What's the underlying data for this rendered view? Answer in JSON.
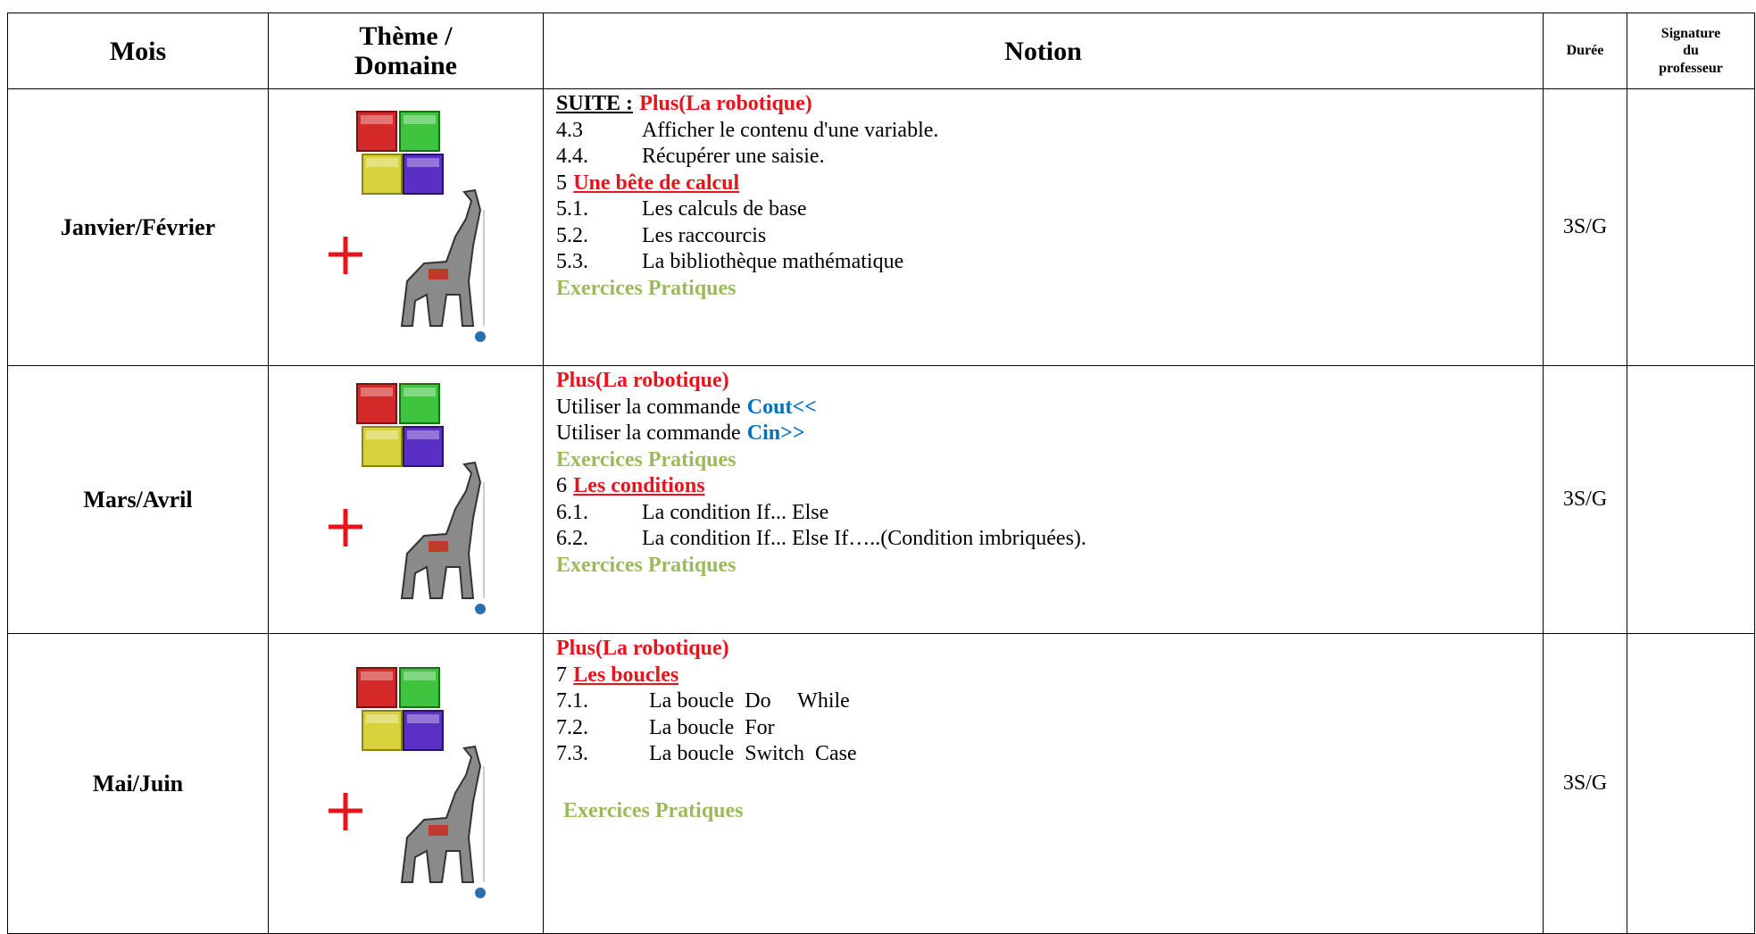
{
  "table": {
    "header": {
      "mois": "Mois",
      "theme": [
        "Thème /",
        "Domaine"
      ],
      "notion": "Notion",
      "duree": "Durée",
      "signature": [
        "Signature",
        "du",
        "professeur"
      ]
    },
    "rows": [
      {
        "mois": "Janvier/Février",
        "duree": "3S/G",
        "notion": [
          {
            "parts": [
              {
                "text": "SUITE :",
                "style": "black-bold-underline"
              },
              {
                "text": "Plus(La robotique)",
                "style": "red-bold"
              }
            ]
          },
          {
            "num": "4.3",
            "parts": [
              {
                "text": "Afficher le contenu d'une variable.",
                "style": "plain"
              }
            ]
          },
          {
            "num": "4.4.",
            "parts": [
              {
                "text": "Récupérer une saisie.",
                "style": "plain"
              }
            ]
          },
          {
            "parts": [
              {
                "text": "5",
                "style": "plain"
              },
              {
                "text": "Une bête de calcul",
                "style": "red-bold-underline"
              }
            ]
          },
          {
            "num": "5.1.",
            "parts": [
              {
                "text": "Les calculs de base",
                "style": "plain"
              }
            ]
          },
          {
            "num": "5.2.",
            "parts": [
              {
                "text": "Les raccourcis",
                "style": "plain"
              }
            ]
          },
          {
            "num": "5.3.",
            "parts": [
              {
                "text": "La bibliothèque mathématique",
                "style": "plain"
              }
            ]
          },
          {
            "parts": [
              {
                "text": "Exercices Pratiques",
                "style": "green-bold"
              }
            ]
          }
        ]
      },
      {
        "mois": "Mars/Avril",
        "duree": "3S/G",
        "notion": [
          {
            "parts": [
              {
                "text": "Plus(La robotique)",
                "style": "red-bold"
              }
            ]
          },
          {
            "parts": [
              {
                "text": "Utiliser la commande",
                "style": "plain"
              },
              {
                "text": "Cout<<",
                "style": "blue-bold"
              }
            ]
          },
          {
            "parts": [
              {
                "text": "Utiliser la commande",
                "style": "plain"
              },
              {
                "text": "Cin>>",
                "style": "blue-bold"
              }
            ]
          },
          {
            "parts": [
              {
                "text": "Exercices Pratiques",
                "style": "green-bold"
              }
            ]
          },
          {
            "parts": [
              {
                "text": "6",
                "style": "plain"
              },
              {
                "text": "Les conditions",
                "style": "red-bold-underline"
              }
            ]
          },
          {
            "num": "6.1.",
            "parts": [
              {
                "text": "La condition If... Else",
                "style": "plain"
              }
            ]
          },
          {
            "num": "6.2.",
            "parts": [
              {
                "text": "La condition If... Else If…..(Condition imbriquées).",
                "style": "plain"
              }
            ]
          },
          {
            "parts": [
              {
                "text": "Exercices Pratiques",
                "style": "green-bold"
              }
            ]
          }
        ]
      },
      {
        "mois": "Mai/Juin",
        "duree": "3S/G",
        "notion": [
          {
            "parts": [
              {
                "text": "Plus(La robotique)",
                "style": "red-bold"
              }
            ]
          },
          {
            "parts": [
              {
                "text": "7",
                "style": "plain"
              },
              {
                "text": "Les boucles",
                "style": "red-bold-underline"
              }
            ]
          },
          {
            "num": "7.1.",
            "parts": [
              {
                "text": "La boucle  Do     While",
                "style": "plain"
              }
            ]
          },
          {
            "num": "7.2.",
            "parts": [
              {
                "text": "La boucle  For",
                "style": "plain"
              }
            ]
          },
          {
            "num": "7.3.",
            "parts": [
              {
                "text": "La boucle  Switch  Case",
                "style": "plain"
              }
            ]
          },
          {
            "parts": [
              {
                "text": "Exercices Pratiques",
                "style": "green-bold"
              }
            ]
          }
        ]
      }
    ]
  }
}
